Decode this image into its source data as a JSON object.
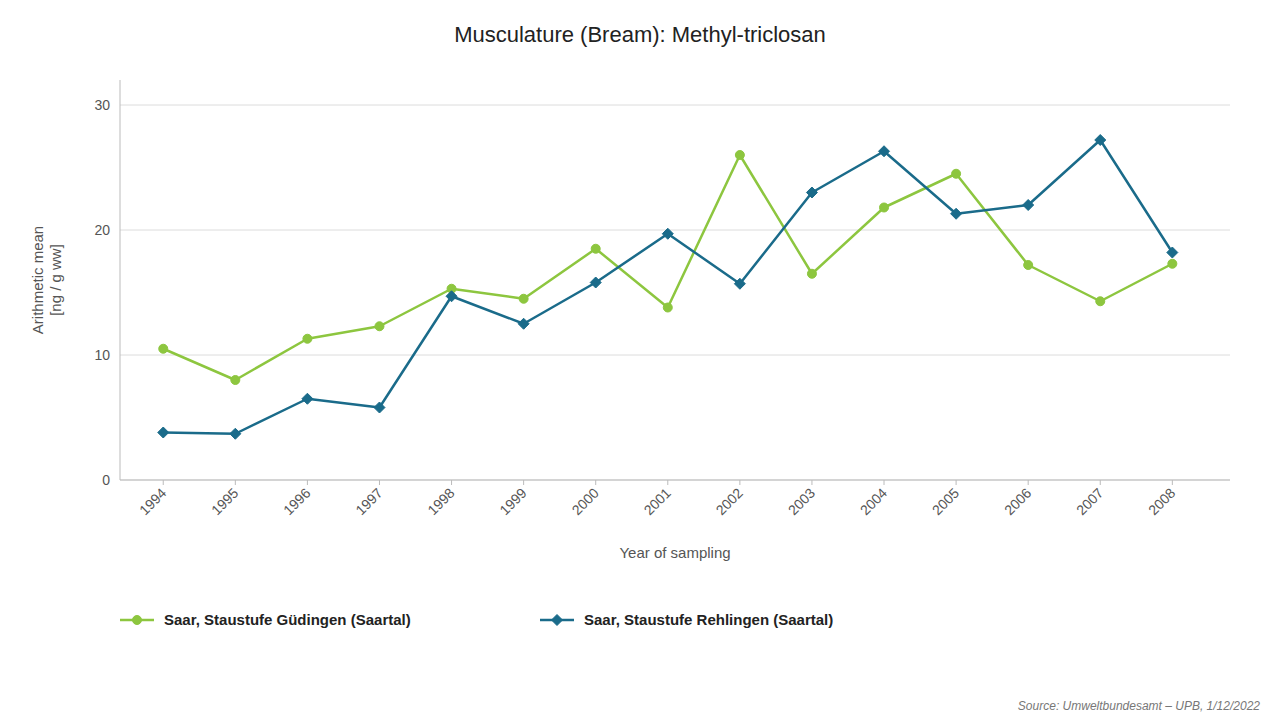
{
  "chart_data": {
    "type": "line",
    "title": "Musculature (Bream): Methyl-triclosan",
    "xlabel": "Year of sampling",
    "ylabel": "Arithmetic mean\n[ng / g  ww]",
    "source": "Source: Umweltbundesamt – UPB, 1/12/2022",
    "x": [
      1994,
      1995,
      1996,
      1997,
      1998,
      1999,
      2000,
      2001,
      2002,
      2003,
      2004,
      2005,
      2006,
      2007,
      2008
    ],
    "series": [
      {
        "name": "Saar, Staustufe Güdingen (Saartal)",
        "color": "#8dc63f",
        "marker": "circle",
        "values": [
          10.5,
          8.0,
          11.3,
          12.3,
          15.3,
          14.5,
          18.5,
          13.8,
          26.0,
          16.5,
          21.8,
          24.5,
          17.2,
          14.3,
          17.3
        ]
      },
      {
        "name": "Saar, Staustufe Rehlingen (Saartal)",
        "color": "#1a6b8a",
        "marker": "diamond",
        "values": [
          3.8,
          3.7,
          6.5,
          5.8,
          14.7,
          12.5,
          15.8,
          19.7,
          15.7,
          23.0,
          26.3,
          21.3,
          22.0,
          27.2,
          18.2
        ]
      }
    ],
    "xlim": [
      1993.4,
      2008.8
    ],
    "xticks": [
      1994,
      1995,
      1996,
      1997,
      1998,
      1999,
      2000,
      2001,
      2002,
      2003,
      2004,
      2005,
      2006,
      2007,
      2008
    ],
    "ylim": [
      0,
      32
    ],
    "yticks": [
      0,
      10,
      20,
      30
    ],
    "grid": true,
    "legend": "bottom"
  }
}
